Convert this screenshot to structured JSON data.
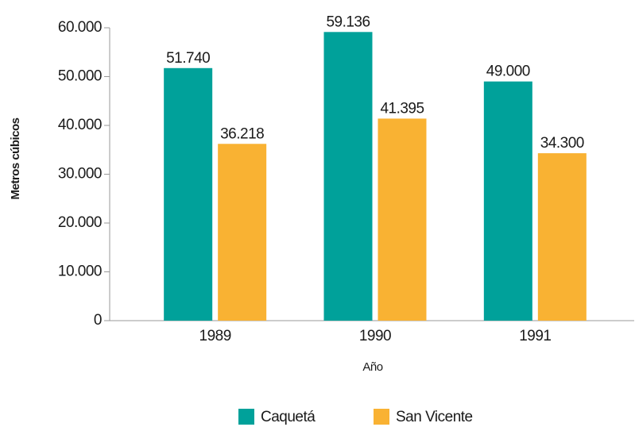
{
  "chart_data": {
    "type": "bar",
    "categories": [
      "1989",
      "1990",
      "1991"
    ],
    "x_label": "Año",
    "y_label": "Metros cúbicos",
    "series": [
      {
        "name": "Caquetá",
        "color": "#00a19a",
        "values": [
          51740,
          59136,
          49000
        ],
        "value_labels": [
          "51.740",
          "59.136",
          "49.000"
        ]
      },
      {
        "name": "San Vicente",
        "color": "#f9b233",
        "values": [
          36218,
          41395,
          34300
        ],
        "value_labels": [
          "36.218",
          "41.395",
          "34.300"
        ]
      }
    ],
    "ylim": [
      0,
      60000
    ],
    "yticks": [
      0,
      {
        "value": 10000,
        "label": "10.000"
      },
      {
        "value": 20000,
        "label": "20.000"
      },
      {
        "value": 30000,
        "label": "30.000"
      },
      {
        "value": 40000,
        "label": "40.000"
      },
      {
        "value": 50000,
        "label": "50.000"
      },
      {
        "value": 60000,
        "label": "60.000"
      }
    ],
    "grid": false,
    "legend": "bottom"
  }
}
